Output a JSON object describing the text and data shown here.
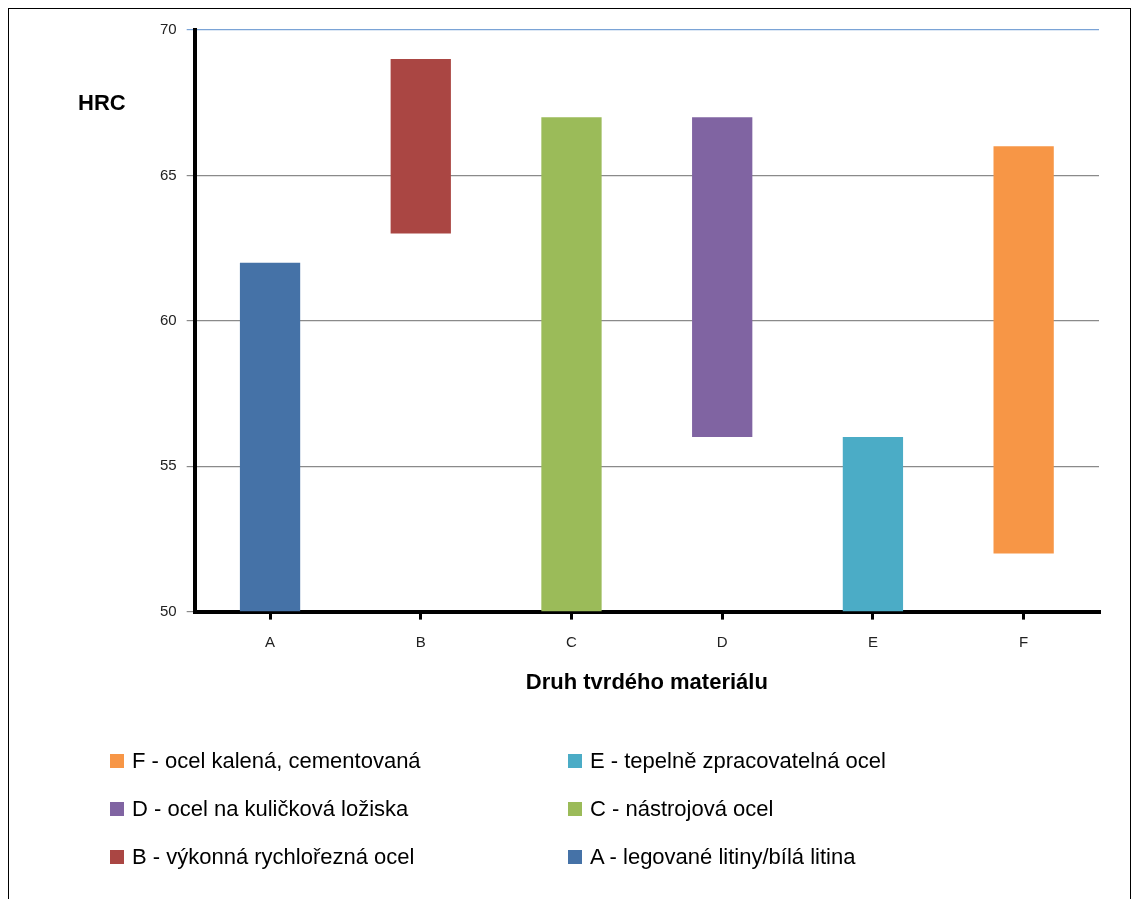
{
  "chart_data": {
    "type": "bar",
    "xlabel": "Druh tvrdého materiálu",
    "ylabel": "HRC",
    "categories": [
      "A",
      "B",
      "C",
      "D",
      "E",
      "F"
    ],
    "series": [
      {
        "name": "A - legované litiny/bílá litina",
        "color": "#4572a7",
        "base": [
          50,
          null,
          null,
          null,
          null,
          null
        ],
        "values": [
          12,
          null,
          null,
          null,
          null,
          null
        ]
      },
      {
        "name": "B - výkonná rychlořezná ocel",
        "color": "#aa4643",
        "base": [
          null,
          63,
          null,
          null,
          null,
          null
        ],
        "values": [
          null,
          6,
          null,
          null,
          null,
          null
        ]
      },
      {
        "name": "C - nástrojová ocel",
        "color": "#9bbb59",
        "base": [
          null,
          null,
          50,
          null,
          null,
          null
        ],
        "values": [
          null,
          null,
          17,
          null,
          null,
          null
        ]
      },
      {
        "name": "D - ocel na kuličková ložiska",
        "color": "#8064a2",
        "base": [
          null,
          null,
          null,
          56,
          null,
          null
        ],
        "values": [
          null,
          null,
          null,
          11,
          null,
          null
        ]
      },
      {
        "name": "E - tepelně zpracovatelná ocel",
        "color": "#4bacc6",
        "base": [
          null,
          null,
          null,
          null,
          50,
          null
        ],
        "values": [
          null,
          null,
          null,
          null,
          6,
          null
        ]
      },
      {
        "name": "F - ocel kalená, cementovaná",
        "color": "#f79646",
        "base": [
          null,
          null,
          null,
          null,
          null,
          52
        ],
        "values": [
          null,
          null,
          null,
          null,
          null,
          14
        ]
      }
    ],
    "ylim": [
      50,
      70
    ],
    "yticks": [
      50,
      55,
      60,
      65,
      70
    ],
    "grid": "y",
    "legend": "bottom"
  }
}
